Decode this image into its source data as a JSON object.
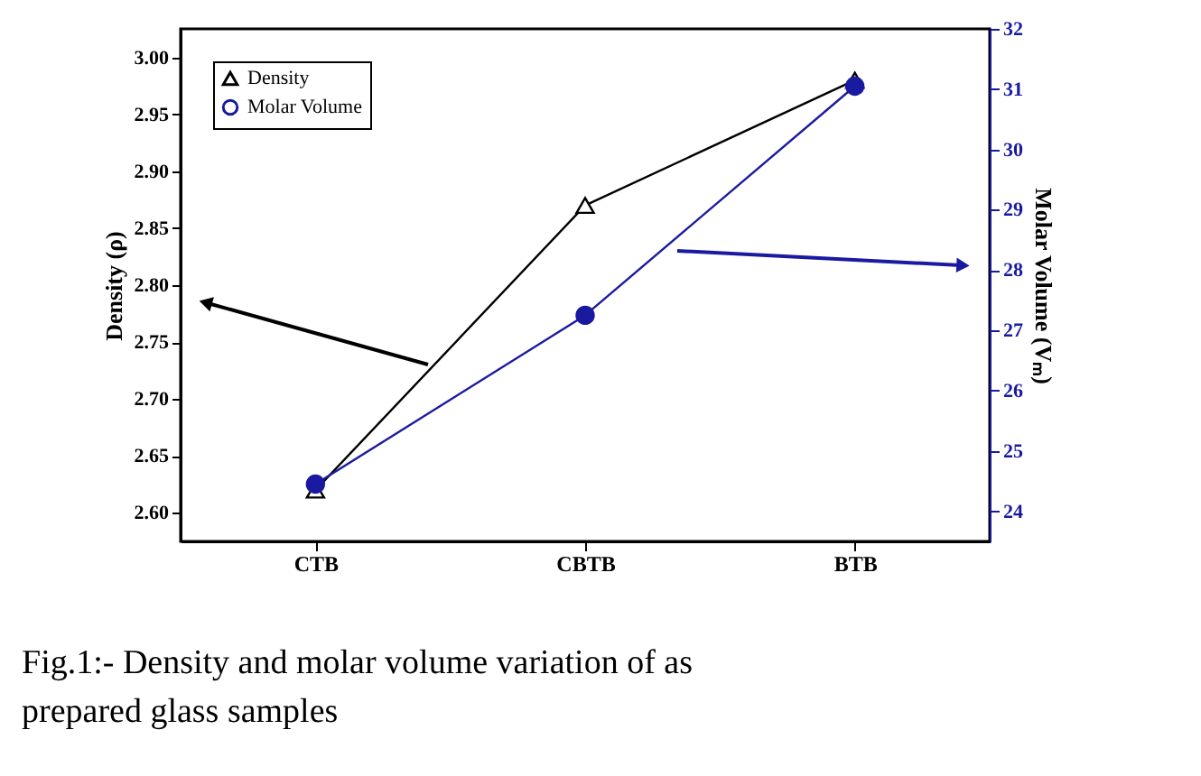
{
  "chart_data": {
    "type": "line",
    "categories": [
      "CTB",
      "CBTB",
      "BTB"
    ],
    "ylabel": "Density (ρ)",
    "y2label": "Molar Volume (Vₘ)",
    "ylim": [
      2.575,
      3.025
    ],
    "yticks": [
      {
        "value": 2.6,
        "label": "2.60"
      },
      {
        "value": 2.65,
        "label": "2.65"
      },
      {
        "value": 2.7,
        "label": "2.70"
      },
      {
        "value": 2.75,
        "label": "2.75"
      },
      {
        "value": 2.8,
        "label": "2.80"
      },
      {
        "value": 2.85,
        "label": "2.85"
      },
      {
        "value": 2.9,
        "label": "2.90"
      },
      {
        "value": 2.95,
        "label": "2.95"
      },
      {
        "value": 3.0,
        "label": "3.00"
      }
    ],
    "y2lim": [
      23.5,
      32
    ],
    "y2ticks": [
      24,
      25,
      26,
      27,
      28,
      29,
      30,
      31,
      32
    ],
    "series": [
      {
        "name": "Density",
        "color": "#000000",
        "values": [
          2.62,
          2.87,
          2.98
        ],
        "marker": "triangle"
      },
      {
        "name": "Molar Volume",
        "color": "#1a1aa0",
        "values": [
          24.45,
          27.25,
          31.05
        ],
        "axis": "y2",
        "marker": "circle"
      }
    ],
    "legend": "top left",
    "grid": false,
    "annotations": [
      "Fig.1:- Density and molar volume variation of as prepared glass samples"
    ]
  }
}
